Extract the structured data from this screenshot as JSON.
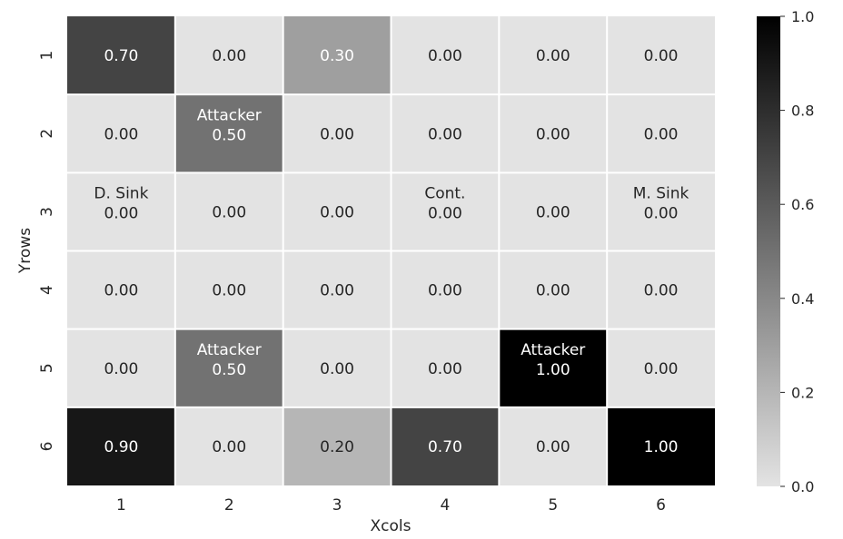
{
  "chart_data": {
    "type": "heatmap",
    "title": "",
    "xlabel": "Xcols",
    "ylabel": "Yrows",
    "x_categories": [
      "1",
      "2",
      "3",
      "4",
      "5",
      "6"
    ],
    "y_categories": [
      "1",
      "2",
      "3",
      "4",
      "5",
      "6"
    ],
    "values": [
      [
        0.7,
        0.0,
        0.3,
        0.0,
        0.0,
        0.0
      ],
      [
        0.0,
        0.5,
        0.0,
        0.0,
        0.0,
        0.0
      ],
      [
        0.0,
        0.0,
        0.0,
        0.0,
        0.0,
        0.0
      ],
      [
        0.0,
        0.0,
        0.0,
        0.0,
        0.0,
        0.0
      ],
      [
        0.0,
        0.5,
        0.0,
        0.0,
        1.0,
        0.0
      ],
      [
        0.9,
        0.0,
        0.2,
        0.7,
        0.0,
        1.0
      ]
    ],
    "annotations": [
      [
        "",
        "",
        "",
        "",
        "",
        ""
      ],
      [
        "",
        "Attacker",
        "",
        "",
        "",
        ""
      ],
      [
        "D. Sink",
        "",
        "",
        "Cont.",
        "",
        "M. Sink"
      ],
      [
        "",
        "",
        "",
        "",
        "",
        ""
      ],
      [
        "",
        "Attacker",
        "",
        "",
        "Attacker",
        ""
      ],
      [
        "",
        "",
        "",
        "",
        "",
        ""
      ]
    ],
    "value_format": "0.00",
    "colorbar": {
      "range": [
        0.0,
        1.0
      ],
      "ticks": [
        "0.0",
        "0.2",
        "0.4",
        "0.6",
        "0.8",
        "1.0"
      ],
      "colors": {
        "low": "#e3e3e3",
        "high": "#000000"
      }
    },
    "grid_line_color": "#ffffff",
    "text_colors": {
      "on_light": "#262626",
      "on_dark": "#ffffff"
    }
  }
}
